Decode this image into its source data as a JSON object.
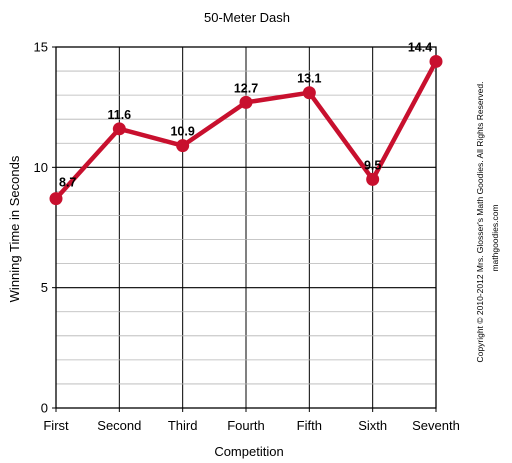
{
  "chart_data": {
    "type": "line",
    "title": "50-Meter Dash",
    "xlabel": "Competition",
    "ylabel": "Winning Time in Seconds",
    "categories": [
      "First",
      "Second",
      "Third",
      "Fourth",
      "Fifth",
      "Sixth",
      "Seventh"
    ],
    "series": [
      {
        "values": [
          8.7,
          11.6,
          10.9,
          12.7,
          13.1,
          9.5,
          14.4
        ]
      }
    ],
    "data_labels": [
      "8.7",
      "11.6",
      "10.9",
      "12.7",
      "13.1",
      "9.5",
      "14.4"
    ],
    "ylim": [
      0,
      15
    ],
    "y_major_ticks": [
      0,
      5,
      10,
      15
    ],
    "y_minor_step": 1,
    "grid": true,
    "legend": "none",
    "line_color": "#c8102e",
    "marker_color": "#c8102e",
    "copyright": "Copyright © 2010-2012 Mrs. Glosser's Math Goodies. All Rights Reserved.",
    "website": "mathgoodies.com"
  }
}
